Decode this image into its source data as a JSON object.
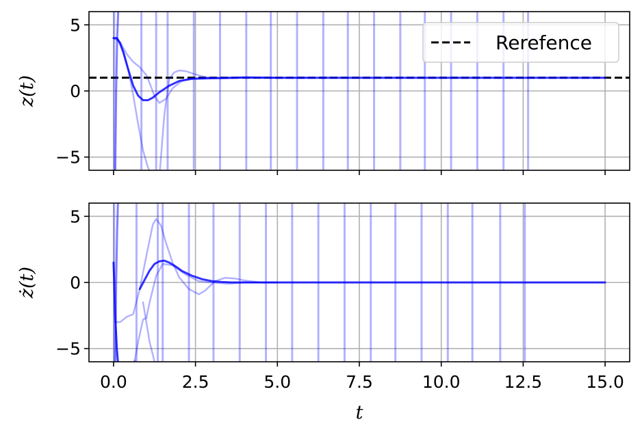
{
  "chart_data": [
    {
      "type": "line",
      "ylabel": "z(t)",
      "xlabel": "",
      "xlim": [
        -0.75,
        15.75
      ],
      "ylim": [
        -6,
        6
      ],
      "xticks": [
        0.0,
        2.5,
        5.0,
        7.5,
        10.0,
        12.5,
        15.0
      ],
      "xtick_labels": [],
      "yticks": [
        -5,
        0,
        5
      ],
      "ytick_labels": [
        "−5",
        "0",
        "5"
      ],
      "grid": true,
      "legend": {
        "placement": "top-right",
        "entries": [
          {
            "label": "Rerefence",
            "style": "dashed",
            "color": "#000000"
          }
        ]
      },
      "reference": {
        "y": 1.0,
        "label": "Rerefence",
        "color": "#000000"
      },
      "event_lines": [
        0.02,
        0.85,
        1.3,
        1.65,
        2.45,
        3.25,
        4.05,
        4.8,
        5.6,
        6.4,
        7.15,
        7.95,
        8.75,
        9.5,
        10.3,
        11.1,
        11.9,
        12.65
      ],
      "series": [
        {
          "color": "#0000ff",
          "opacity": 0.8,
          "width": 3,
          "x": [
            0.0,
            0.1,
            0.2,
            0.3,
            0.45,
            0.6,
            0.75,
            0.9,
            1.05,
            1.2,
            1.4,
            1.7,
            2.0,
            2.4,
            2.8,
            3.2,
            3.6,
            4.0,
            5.0,
            6.0,
            8.0,
            10.0,
            12.0,
            15.0
          ],
          "y": [
            4.0,
            4.0,
            3.6,
            2.9,
            1.6,
            0.4,
            -0.35,
            -0.7,
            -0.7,
            -0.5,
            -0.1,
            0.4,
            0.75,
            0.92,
            0.95,
            0.98,
            1.0,
            1.02,
            1.0,
            1.0,
            1.0,
            1.0,
            1.0,
            1.0
          ]
        },
        {
          "color": "#0000ff",
          "opacity": 0.3,
          "width": 2.5,
          "x": [
            0.0,
            0.15,
            0.3,
            0.45,
            0.6,
            0.75,
            0.9,
            1.05,
            1.2,
            1.35,
            1.45
          ],
          "y": [
            4.0,
            3.8,
            3.0,
            1.6,
            -0.3,
            -2.5,
            -4.5,
            -5.8,
            -6.5,
            -6.8,
            -7.0
          ]
        },
        {
          "color": "#0000ff",
          "opacity": 0.3,
          "width": 2.5,
          "x": [
            1.4,
            1.55,
            1.7,
            1.85,
            2.0,
            2.2,
            2.5,
            2.8,
            3.2,
            3.6,
            4.0,
            5.0,
            6.0
          ],
          "y": [
            -6.5,
            -1.8,
            0.9,
            1.4,
            1.55,
            1.5,
            1.25,
            1.05,
            0.95,
            0.98,
            1.0,
            1.0,
            1.0
          ]
        },
        {
          "color": "#0000ff",
          "opacity": 0.3,
          "width": 2.5,
          "x": [
            0.0,
            0.1,
            0.2,
            0.4,
            0.6,
            0.8,
            0.9,
            1.0,
            1.1,
            1.25,
            1.4,
            1.6,
            1.8,
            2.1,
            2.4,
            2.8,
            3.2,
            3.6,
            4.0,
            5.0
          ],
          "y": [
            4.0,
            4.0,
            3.7,
            2.8,
            2.2,
            1.8,
            1.5,
            1.2,
            0.6,
            -0.4,
            -0.9,
            -0.6,
            0.2,
            0.8,
            0.95,
            1.0,
            1.0,
            1.0,
            1.0,
            1.0
          ]
        },
        {
          "color": "#0000ff",
          "opacity": 0.5,
          "width": 3,
          "x": [
            0.05,
            0.08,
            0.11,
            0.15
          ],
          "y": [
            -6.5,
            0.0,
            4.0,
            6.5
          ]
        }
      ]
    },
    {
      "type": "line",
      "ylabel": "ż(t)",
      "xlabel": "t",
      "xlim": [
        -0.75,
        15.75
      ],
      "ylim": [
        -6,
        6
      ],
      "xticks": [
        0.0,
        2.5,
        5.0,
        7.5,
        10.0,
        12.5,
        15.0
      ],
      "xtick_labels": [
        "0.0",
        "2.5",
        "5.0",
        "7.5",
        "10.0",
        "12.5",
        "15.0"
      ],
      "yticks": [
        -5,
        0,
        5
      ],
      "ytick_labels": [
        "−5",
        "0",
        "5"
      ],
      "grid": true,
      "event_lines": [
        0.02,
        0.7,
        1.35,
        1.5,
        2.3,
        3.05,
        3.85,
        4.65,
        5.45,
        6.25,
        7.05,
        7.85,
        8.6,
        9.4,
        10.2,
        10.95,
        11.8,
        12.55
      ],
      "series": [
        {
          "color": "#0000ff",
          "opacity": 0.8,
          "width": 3,
          "x": [
            0.0,
            0.02,
            0.05,
            0.1,
            0.15,
            0.2
          ],
          "y": [
            1.5,
            0.0,
            -2.5,
            -5.0,
            -6.5,
            -7.0
          ]
        },
        {
          "color": "#0000ff",
          "opacity": 0.8,
          "width": 3,
          "x": [
            0.8,
            0.95,
            1.1,
            1.25,
            1.4,
            1.55,
            1.7,
            1.9,
            2.1,
            2.4,
            2.7,
            3.0,
            3.3,
            3.6,
            4.0,
            4.5,
            5.0,
            6.0,
            8.0,
            10.0,
            12.0,
            15.0
          ],
          "y": [
            -0.5,
            0.2,
            0.9,
            1.4,
            1.6,
            1.65,
            1.5,
            1.2,
            0.85,
            0.5,
            0.25,
            0.1,
            0.03,
            0.0,
            0.0,
            0.0,
            0.0,
            0.0,
            0.0,
            0.0,
            0.0,
            0.0
          ]
        },
        {
          "color": "#0000ff",
          "opacity": 0.3,
          "width": 2.5,
          "x": [
            0.05,
            0.2,
            0.4,
            0.6,
            0.8,
            1.0,
            1.2,
            1.3,
            1.45,
            1.6,
            1.8,
            2.0,
            2.3,
            2.6,
            2.8,
            3.1,
            3.4,
            3.7,
            4.0,
            4.5,
            5.0
          ],
          "y": [
            -3.0,
            -3.0,
            -2.6,
            -2.4,
            -0.5,
            2.0,
            4.4,
            4.8,
            4.3,
            3.0,
            1.5,
            0.4,
            -0.5,
            -0.9,
            -0.6,
            0.1,
            0.35,
            0.3,
            0.15,
            0.0,
            0.0
          ]
        },
        {
          "color": "#0000ff",
          "opacity": 0.3,
          "width": 2.5,
          "x": [
            0.6,
            0.75,
            0.9,
            1.0,
            1.1,
            1.3,
            1.5,
            1.8,
            2.2,
            2.6,
            3.0,
            3.5,
            4.0,
            4.5,
            5.0
          ],
          "y": [
            -6.5,
            -4.5,
            -2.8,
            -2.7,
            -1.5,
            0.5,
            1.4,
            1.3,
            0.6,
            0.1,
            0.0,
            -0.1,
            0.0,
            0.0,
            0.0
          ]
        },
        {
          "color": "#0000ff",
          "opacity": 0.3,
          "width": 2.5,
          "x": [
            0.9,
            1.0,
            1.1,
            1.25,
            1.4
          ],
          "y": [
            -1.5,
            -3.0,
            -4.5,
            -6.0,
            -6.8
          ]
        },
        {
          "color": "#0000ff",
          "opacity": 0.3,
          "width": 2.5,
          "x": [
            0.55,
            0.6,
            0.65,
            0.7
          ],
          "y": [
            -6.5,
            -6.2,
            -5.9,
            -6.5
          ]
        },
        {
          "color": "#0000ff",
          "opacity": 0.5,
          "width": 3,
          "x": [
            0.05,
            0.08,
            0.11,
            0.14
          ],
          "y": [
            -6.5,
            0.0,
            4.0,
            6.5
          ]
        }
      ]
    }
  ]
}
